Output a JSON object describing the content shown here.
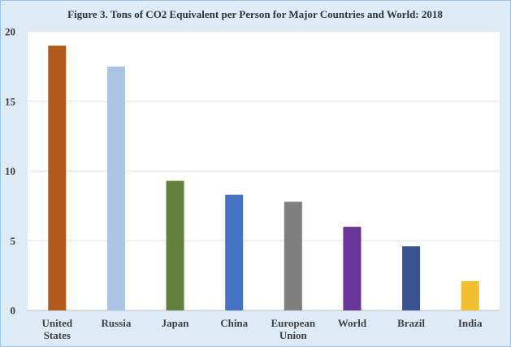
{
  "chart_data": {
    "type": "bar",
    "title": "Figure 3. Tons of  CO2 Equivalent per Person for Major Countries and World: 2018",
    "xlabel": "",
    "ylabel": "",
    "ylim": [
      0,
      20
    ],
    "yticks": [
      0,
      5,
      10,
      15,
      20
    ],
    "grid": true,
    "legend": "none",
    "categories": [
      [
        "United",
        "States"
      ],
      [
        "Russia"
      ],
      [
        "Japan"
      ],
      [
        "China"
      ],
      [
        "European",
        "Union"
      ],
      [
        "World"
      ],
      [
        "Brazil"
      ],
      [
        "India"
      ]
    ],
    "values": [
      19.0,
      17.5,
      9.3,
      8.3,
      7.8,
      6.0,
      4.6,
      2.1
    ],
    "colors": [
      "#b05a1e",
      "#a9c4e4",
      "#63803c",
      "#4472c4",
      "#7f7f7f",
      "#6a3599",
      "#3a5393",
      "#f0c02e"
    ]
  }
}
